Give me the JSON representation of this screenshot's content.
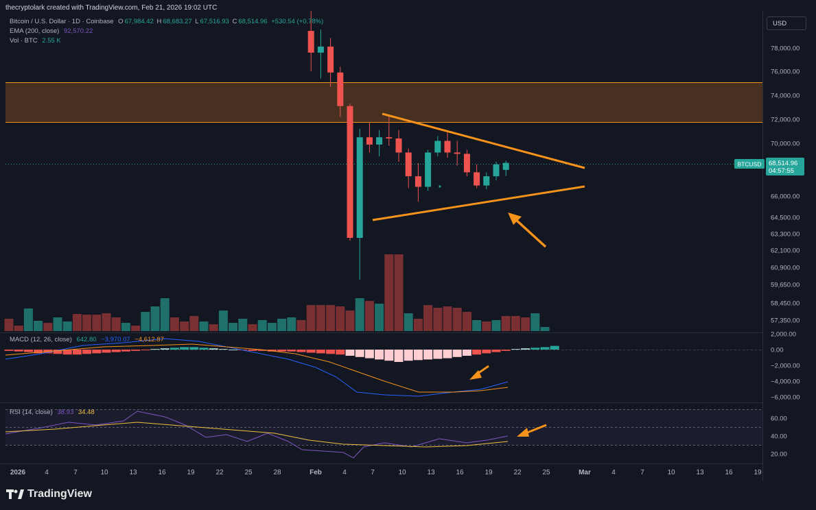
{
  "header": {
    "attribution": "thecryptolark created with TradingView.com, Feb 21, 2026 19:02 UTC"
  },
  "legend": {
    "symbol": "Bitcoin / U.S. Dollar · 1D · Coinbase",
    "o_label": "O",
    "o": "67,984.42",
    "h_label": "H",
    "h": "68,683.27",
    "l_label": "L",
    "l": "67,516.93",
    "c_label": "C",
    "c": "68,514.96",
    "change": "+530.54 (+0.78%)",
    "ema_label": "EMA (200, close)",
    "ema_value": "92,570.22",
    "vol_label": "Vol · BTC",
    "vol_value": "2.55 K",
    "macd_label": "MACD (12, 26, close)",
    "macd_hist": "642.80",
    "macd_line": "−3,970.07",
    "macd_signal": "−4,612.87",
    "rsi_label": "RSI (14, close)",
    "rsi_value": "38.93",
    "rsi_ma": "34.48"
  },
  "currency_button": "USD",
  "price_tag": {
    "symbol": "BTCUSD",
    "price": "68,514.96",
    "countdown": "04:57:55"
  },
  "brand": "TradingView",
  "colors": {
    "up": "#26a69a",
    "down": "#ef5350",
    "vol_up": "#1f6f6a",
    "vol_down": "#7a2f33",
    "zone": "#5a3a20",
    "zone_border": "#f7931a",
    "annotation": "#f7931a",
    "macd_line": "#2962ff",
    "signal_line": "#f7931a",
    "rsi_line": "#7e57c2",
    "rsi_ma": "#f0c040",
    "bg": "#131722"
  },
  "chart_data": {
    "type": "candlestick",
    "x_tick_labels": [
      "2026",
      "4",
      "7",
      "10",
      "13",
      "16",
      "19",
      "22",
      "25",
      "28",
      "Feb",
      "4",
      "7",
      "10",
      "13",
      "16",
      "19",
      "22",
      "25",
      "Mar",
      "4",
      "7",
      "10",
      "13",
      "16",
      "19"
    ],
    "price_axis_labels": [
      "78,000.00",
      "76,000.00",
      "74,000.00",
      "72,000.00",
      "70,000.00",
      "66,000.00",
      "64,500.00",
      "63,300.00",
      "62,100.00",
      "60,900.00",
      "59,650.00",
      "58,450.00",
      "57,350.00"
    ],
    "candles_from_feb1": [
      {
        "date": "Feb 1",
        "o": 79200,
        "h": 80600,
        "l": 76000,
        "c": 77600
      },
      {
        "date": "Feb 2",
        "o": 77600,
        "h": 79300,
        "l": 75400,
        "c": 78100
      },
      {
        "date": "Feb 3",
        "o": 78100,
        "h": 78700,
        "l": 74700,
        "c": 75900
      },
      {
        "date": "Feb 4",
        "o": 75900,
        "h": 76400,
        "l": 72200,
        "c": 73100
      },
      {
        "date": "Feb 5",
        "o": 73100,
        "h": 73300,
        "l": 62800,
        "c": 63000
      },
      {
        "date": "Feb 6",
        "o": 63000,
        "h": 71200,
        "l": 60000,
        "c": 70500
      },
      {
        "date": "Feb 7",
        "o": 70500,
        "h": 71800,
        "l": 69300,
        "c": 69900
      },
      {
        "date": "Feb 8",
        "o": 69900,
        "h": 71100,
        "l": 69000,
        "c": 70500
      },
      {
        "date": "Feb 9",
        "o": 70500,
        "h": 72200,
        "l": 69800,
        "c": 70400
      },
      {
        "date": "Feb 10",
        "o": 70400,
        "h": 71100,
        "l": 68600,
        "c": 69300
      },
      {
        "date": "Feb 11",
        "o": 69300,
        "h": 69600,
        "l": 66600,
        "c": 67500
      },
      {
        "date": "Feb 12",
        "o": 67500,
        "h": 68500,
        "l": 65600,
        "c": 66700
      },
      {
        "date": "Feb 13",
        "o": 66700,
        "h": 69500,
        "l": 66400,
        "c": 69300
      },
      {
        "date": "Feb 14",
        "o": 69300,
        "h": 70600,
        "l": 69000,
        "c": 70200
      },
      {
        "date": "Feb 15",
        "o": 70200,
        "h": 70900,
        "l": 68900,
        "c": 69300
      },
      {
        "date": "Feb 16",
        "o": 69300,
        "h": 70200,
        "l": 68300,
        "c": 69200
      },
      {
        "date": "Feb 17",
        "o": 69200,
        "h": 69500,
        "l": 67500,
        "c": 67800
      },
      {
        "date": "Feb 18",
        "o": 67800,
        "h": 68400,
        "l": 66600,
        "c": 66800
      },
      {
        "date": "Feb 19",
        "o": 66800,
        "h": 67800,
        "l": 66500,
        "c": 67500
      },
      {
        "date": "Feb 20",
        "o": 67500,
        "h": 68600,
        "l": 67200,
        "c": 68400
      },
      {
        "date": "Feb 21",
        "o": 67984.42,
        "h": 68683.27,
        "l": 67516.93,
        "c": 68514.96
      }
    ],
    "resistance_zone": [
      72000,
      75100
    ],
    "macd_axis_labels": [
      "2,000.00",
      "0.00",
      "−2,000.00",
      "−4,000.00",
      "−6,000.00"
    ],
    "rsi_axis_labels": [
      "60.00",
      "40.00",
      "20.00"
    ]
  }
}
